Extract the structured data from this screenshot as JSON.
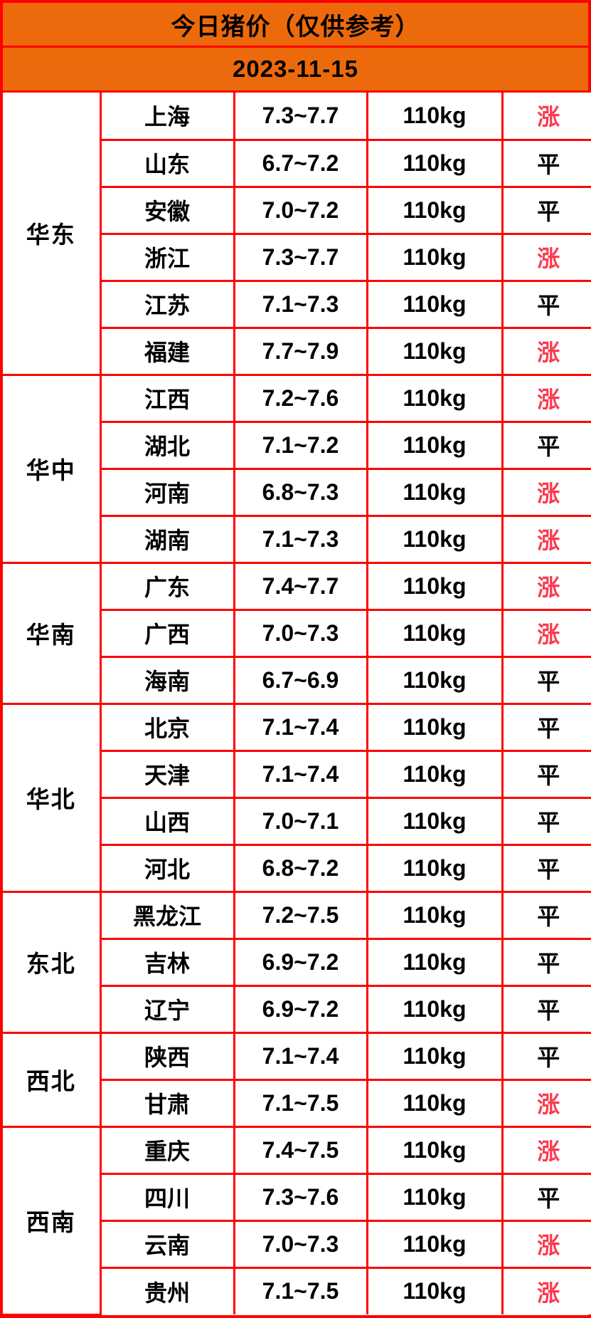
{
  "page": {
    "title": "今日猪价（仅供参考）",
    "date": "2023-11-15"
  },
  "colors": {
    "banner_bg": "#ED6A0C",
    "grid_red": "#FF0000",
    "rise_red": "#F93B50",
    "flat_black": "#000000",
    "cell_bg": "#FFFFFF",
    "text_black": "#000000"
  },
  "table": {
    "status_colors": {
      "涨": "#F93B50",
      "平": "#000000"
    },
    "regions": [
      {
        "name": "华东",
        "rows": [
          {
            "province": "上海",
            "price": "7.3~7.7",
            "weight": "110kg",
            "status": "涨"
          },
          {
            "province": "山东",
            "price": "6.7~7.2",
            "weight": "110kg",
            "status": "平"
          },
          {
            "province": "安徽",
            "price": "7.0~7.2",
            "weight": "110kg",
            "status": "平"
          },
          {
            "province": "浙江",
            "price": "7.3~7.7",
            "weight": "110kg",
            "status": "涨"
          },
          {
            "province": "江苏",
            "price": "7.1~7.3",
            "weight": "110kg",
            "status": "平"
          },
          {
            "province": "福建",
            "price": "7.7~7.9",
            "weight": "110kg",
            "status": "涨"
          }
        ]
      },
      {
        "name": "华中",
        "rows": [
          {
            "province": "江西",
            "price": "7.2~7.6",
            "weight": "110kg",
            "status": "涨"
          },
          {
            "province": "湖北",
            "price": "7.1~7.2",
            "weight": "110kg",
            "status": "平"
          },
          {
            "province": "河南",
            "price": "6.8~7.3",
            "weight": "110kg",
            "status": "涨"
          },
          {
            "province": "湖南",
            "price": "7.1~7.3",
            "weight": "110kg",
            "status": "涨"
          }
        ]
      },
      {
        "name": "华南",
        "rows": [
          {
            "province": "广东",
            "price": "7.4~7.7",
            "weight": "110kg",
            "status": "涨"
          },
          {
            "province": "广西",
            "price": "7.0~7.3",
            "weight": "110kg",
            "status": "涨"
          },
          {
            "province": "海南",
            "price": "6.7~6.9",
            "weight": "110kg",
            "status": "平"
          }
        ]
      },
      {
        "name": "华北",
        "rows": [
          {
            "province": "北京",
            "price": "7.1~7.4",
            "weight": "110kg",
            "status": "平"
          },
          {
            "province": "天津",
            "price": "7.1~7.4",
            "weight": "110kg",
            "status": "平"
          },
          {
            "province": "山西",
            "price": "7.0~7.1",
            "weight": "110kg",
            "status": "平"
          },
          {
            "province": "河北",
            "price": "6.8~7.2",
            "weight": "110kg",
            "status": "平"
          }
        ]
      },
      {
        "name": "东北",
        "rows": [
          {
            "province": "黑龙江",
            "price": "7.2~7.5",
            "weight": "110kg",
            "status": "平"
          },
          {
            "province": "吉林",
            "price": "6.9~7.2",
            "weight": "110kg",
            "status": "平"
          },
          {
            "province": "辽宁",
            "price": "6.9~7.2",
            "weight": "110kg",
            "status": "平"
          }
        ]
      },
      {
        "name": "西北",
        "rows": [
          {
            "province": "陕西",
            "price": "7.1~7.4",
            "weight": "110kg",
            "status": "平"
          },
          {
            "province": "甘肃",
            "price": "7.1~7.5",
            "weight": "110kg",
            "status": "涨"
          }
        ]
      },
      {
        "name": "西南",
        "rows": [
          {
            "province": "重庆",
            "price": "7.4~7.5",
            "weight": "110kg",
            "status": "涨"
          },
          {
            "province": "四川",
            "price": "7.3~7.6",
            "weight": "110kg",
            "status": "平"
          },
          {
            "province": "云南",
            "price": "7.0~7.3",
            "weight": "110kg",
            "status": "涨"
          },
          {
            "province": "贵州",
            "price": "7.1~7.5",
            "weight": "110kg",
            "status": "涨"
          }
        ]
      }
    ]
  }
}
